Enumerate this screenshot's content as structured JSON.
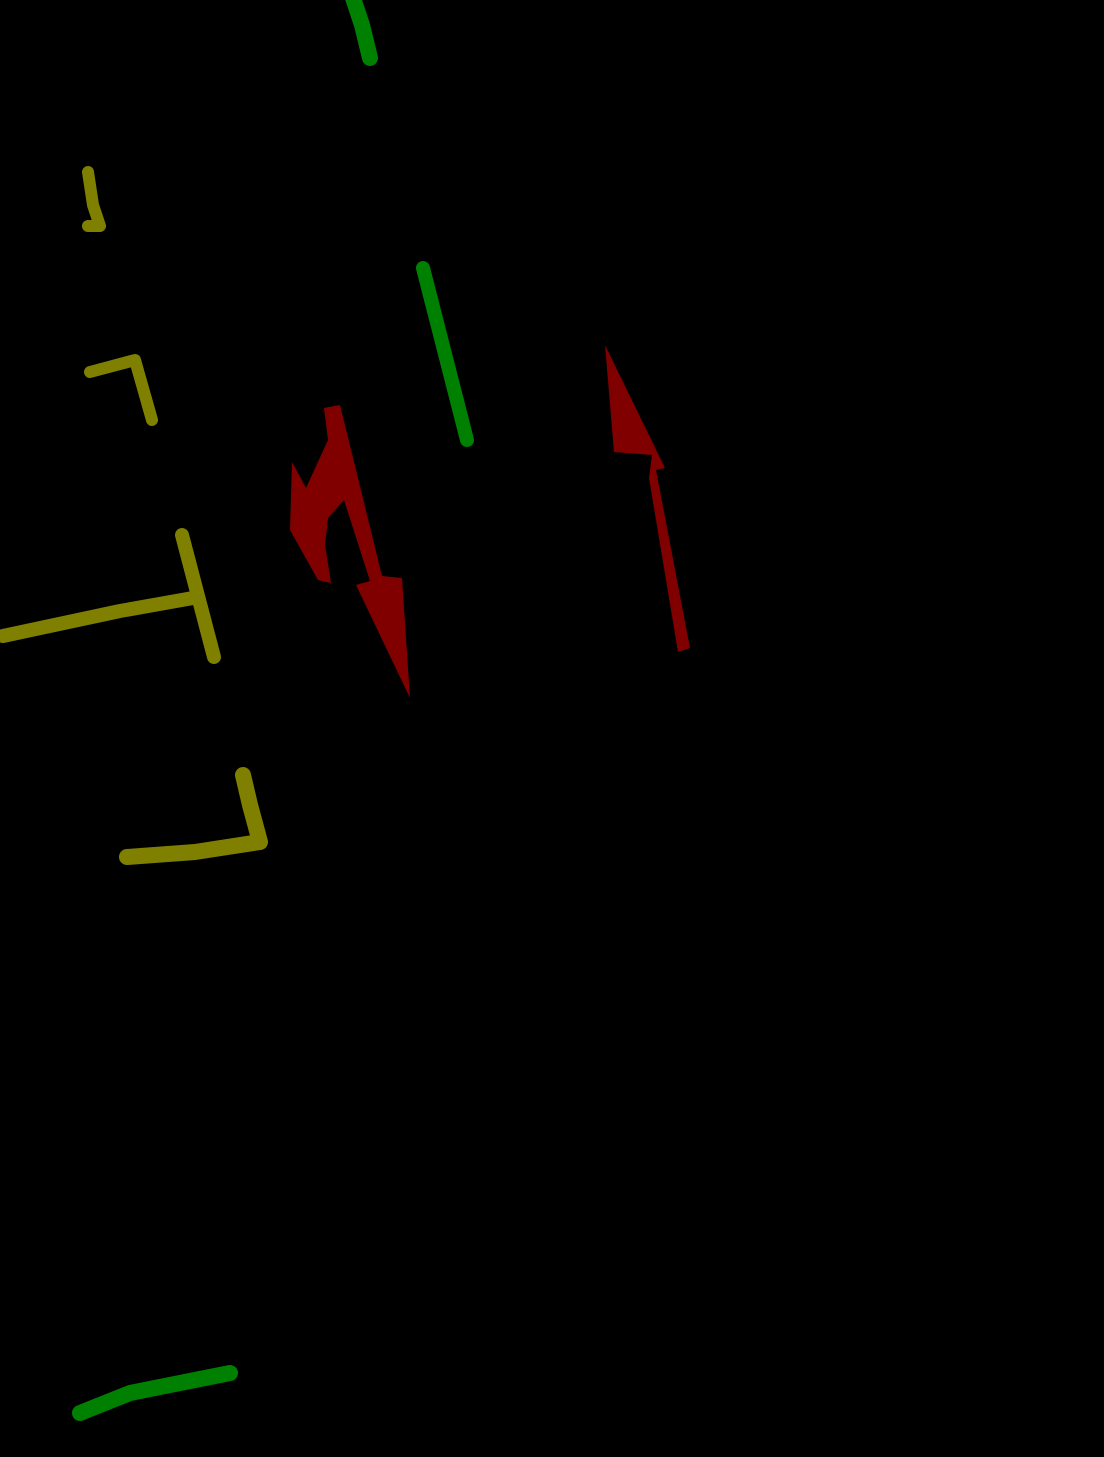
{
  "canvas": {
    "background": "#000000"
  },
  "palette": {
    "green": "#008000",
    "olive": "#808000",
    "dark_red": "#800000"
  },
  "regions": {
    "green_lines": {
      "class_color": "green",
      "count": 3
    },
    "olive_brackets": {
      "class_color": "olive",
      "count": 4
    },
    "red_arrows": {
      "class_color": "dark_red",
      "count": 2
    }
  }
}
